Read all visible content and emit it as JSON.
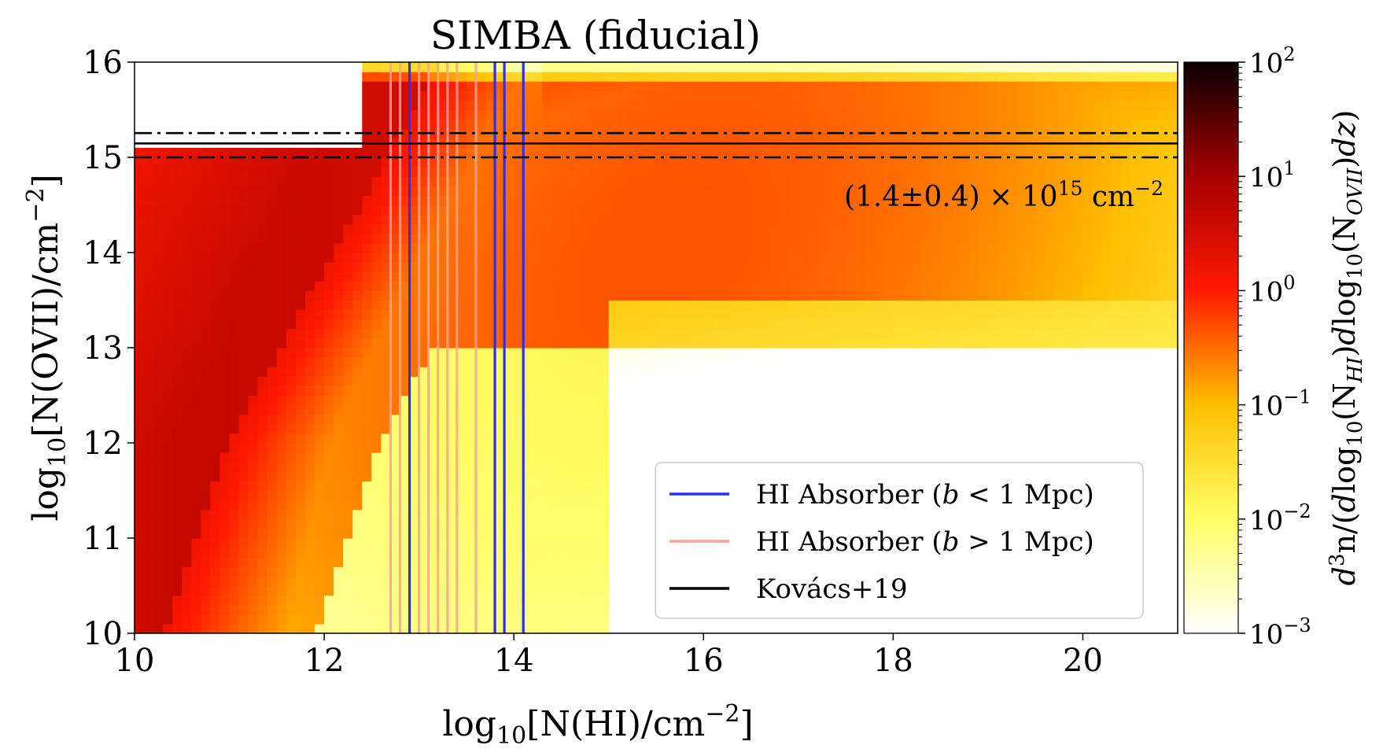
{
  "chart_data": {
    "type": "heatmap",
    "title": "SIMBA (fiducial)",
    "xlabel": {
      "base": "log",
      "sub": "10",
      "main": "[N(HI)/cm",
      "sup": "−2",
      "end": "]"
    },
    "ylabel": {
      "base": "log",
      "sub": "10",
      "main": "[N(OVII)/cm",
      "sup": "−2",
      "end": "]"
    },
    "xlim": [
      10,
      21
    ],
    "ylim": [
      10,
      16
    ],
    "xticks": [
      "10",
      "12",
      "14",
      "16",
      "18",
      "20"
    ],
    "yticks": [
      "10",
      "11",
      "12",
      "13",
      "14",
      "15",
      "16"
    ],
    "colorbar": {
      "label": "d³n/(dlog₁₀(N_HI)dlog₁₀(N_OVII)dz)",
      "scale": "log",
      "range": [
        0.001,
        100
      ],
      "ticks": [
        {
          "base": "10",
          "exp": "−3"
        },
        {
          "base": "10",
          "exp": "−2"
        },
        {
          "base": "10",
          "exp": "−1"
        },
        {
          "base": "10",
          "exp": "0"
        },
        {
          "base": "10",
          "exp": "1"
        },
        {
          "base": "10",
          "exp": "2"
        }
      ],
      "colormap": "hot_r"
    },
    "kovacs_band": {
      "center": 15.146,
      "lower": 15.0,
      "upper": 15.255
    },
    "annotation": {
      "pre": "(1.4±0.4) × 10",
      "exp": "15",
      "post": " cm",
      "unit_exp": "−2"
    },
    "absorbers_near": [
      12.9,
      13.8,
      13.9,
      14.1
    ],
    "absorbers_far": [
      12.7,
      12.8,
      12.9,
      13.0,
      13.1,
      13.2,
      13.3,
      13.4,
      13.6
    ],
    "legend": {
      "placement": "lower-right",
      "entries": [
        {
          "pre": "HI Absorber (",
          "italic": "b",
          "post": " < 1 Mpc)",
          "color": "#2e2ef0"
        },
        {
          "pre": "HI Absorber (",
          "italic": "b",
          "post": " > 1 Mpc)",
          "color": "#f3a39b"
        },
        {
          "pre": "Kovács+19",
          "italic": "",
          "post": "",
          "color": "#000000"
        }
      ]
    }
  }
}
